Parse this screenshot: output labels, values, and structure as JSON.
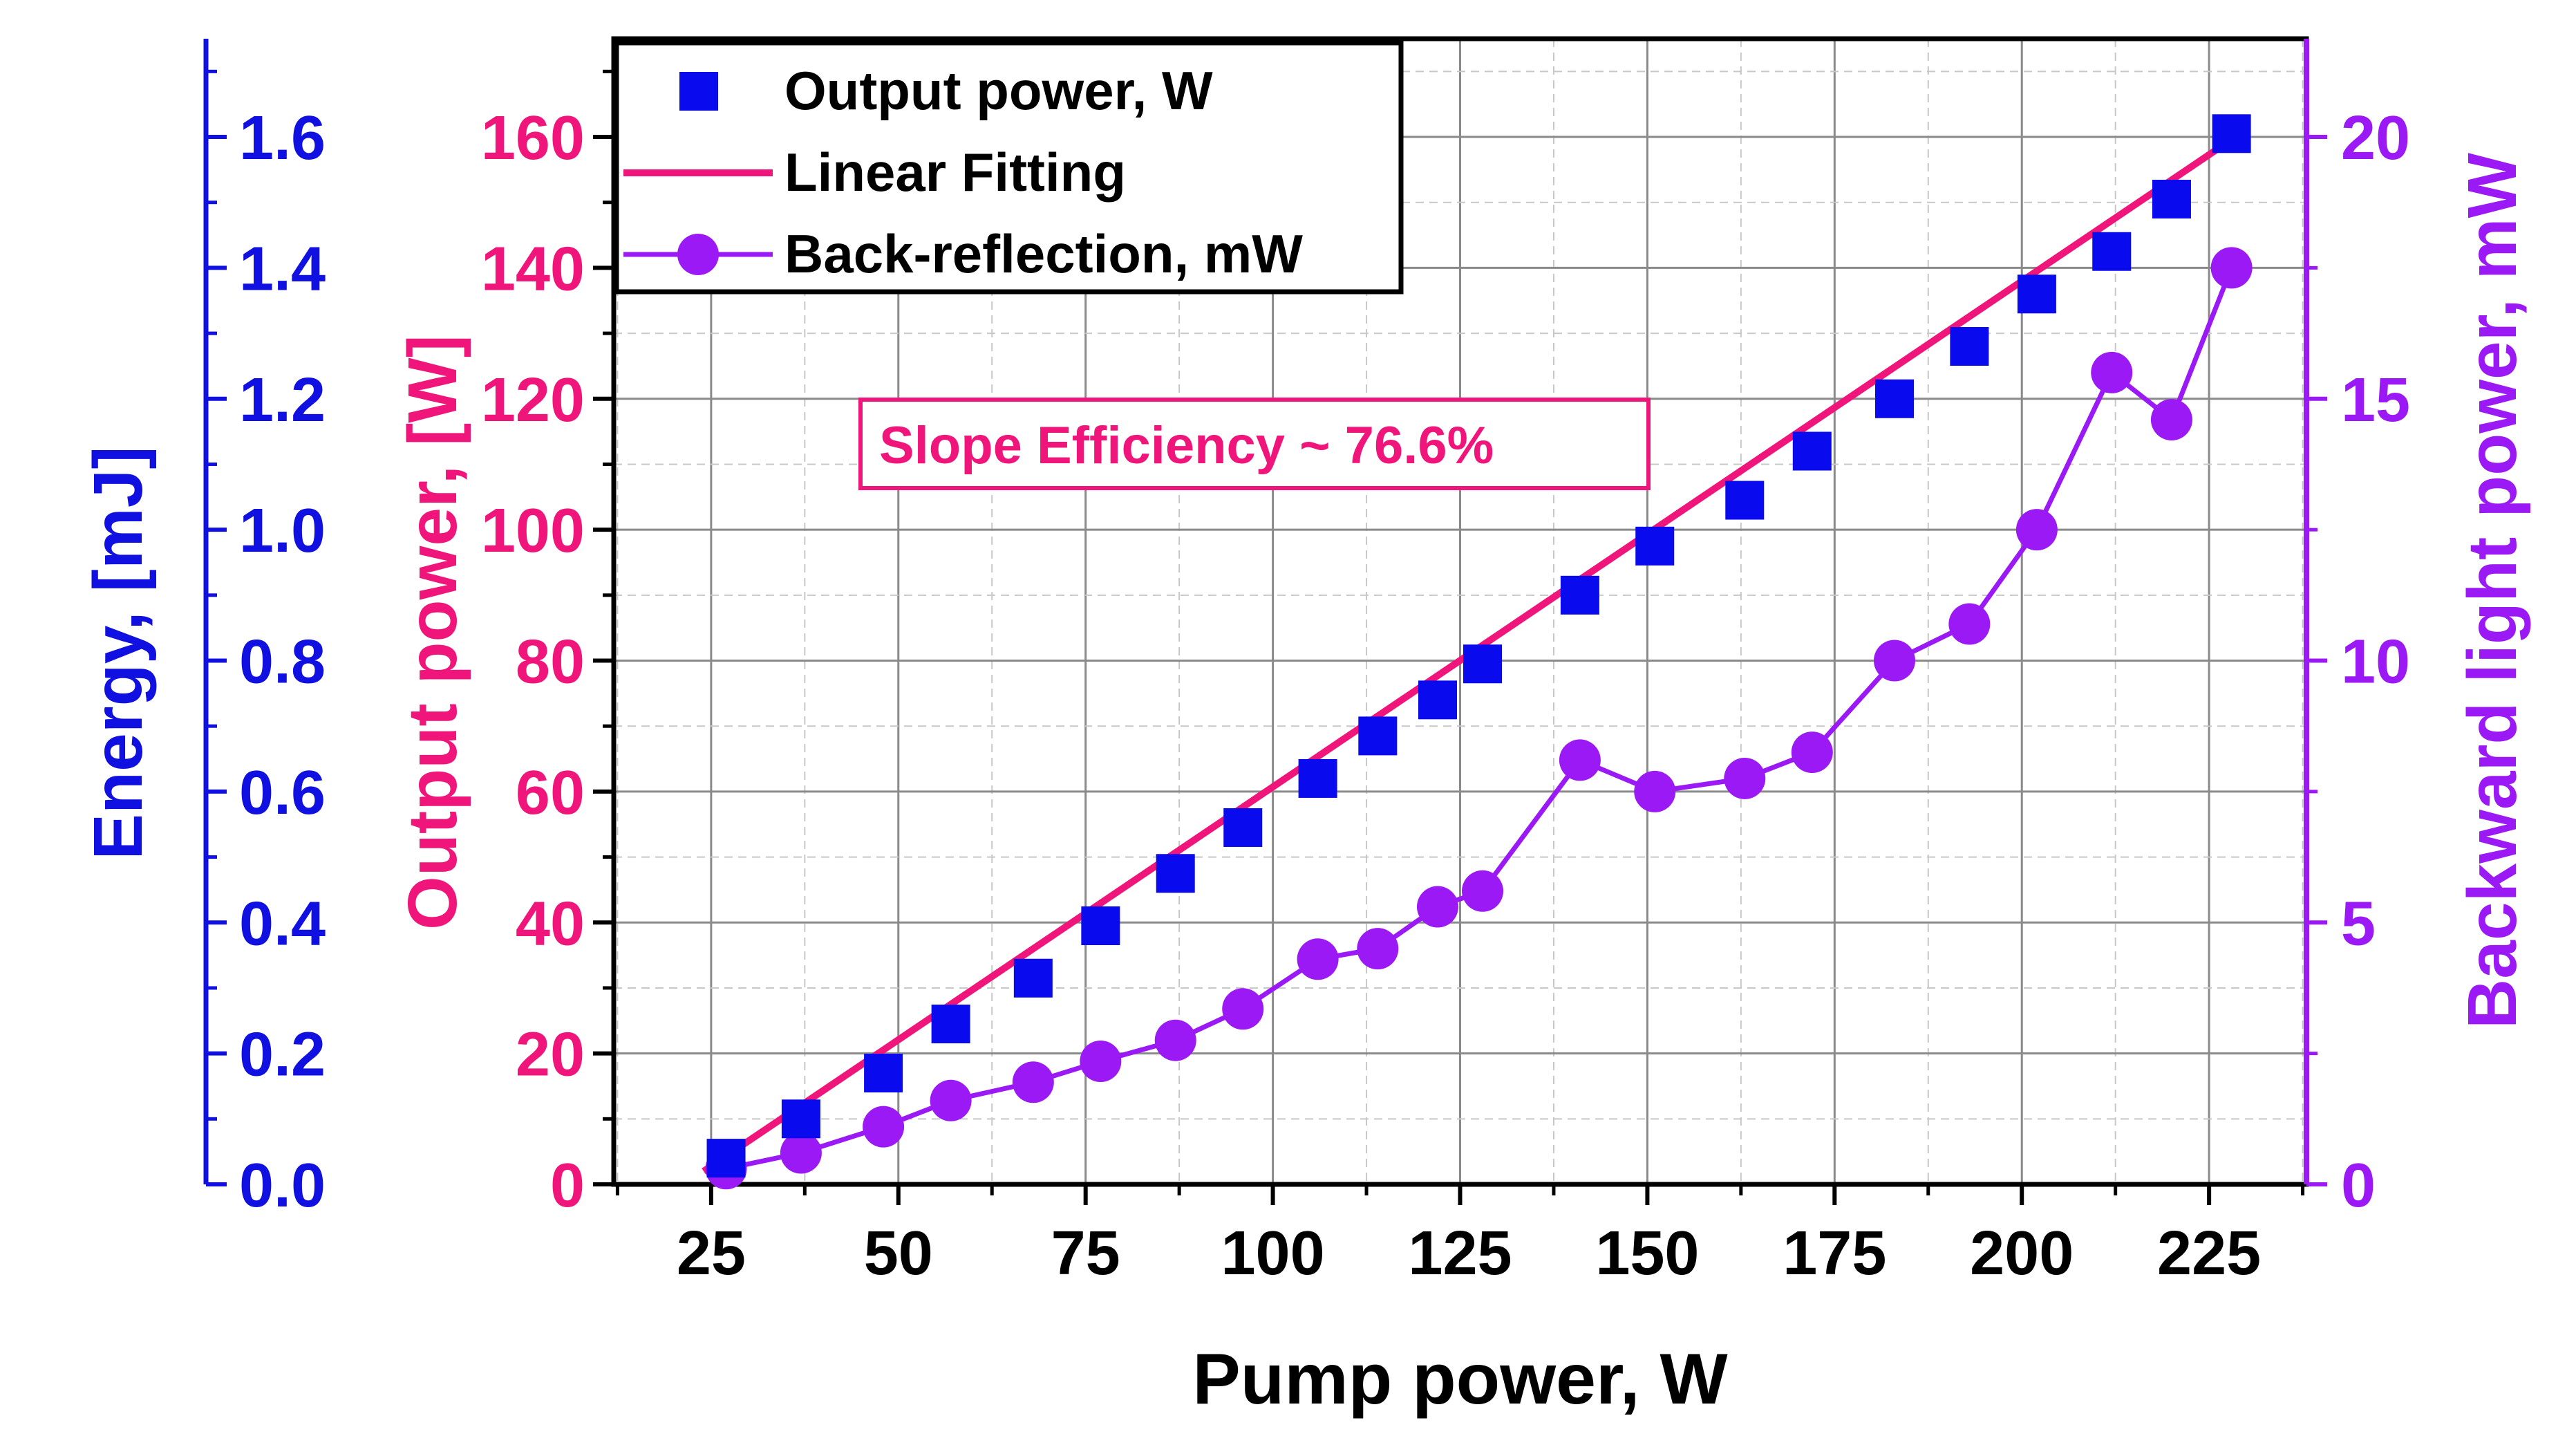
{
  "chart_data": {
    "type": "line",
    "xlabel": "Pump power, W",
    "xlim": [
      12,
      238
    ],
    "xticks": [
      "25",
      "50",
      "75",
      "100",
      "125",
      "150",
      "175",
      "200",
      "225"
    ],
    "left_outer_axis": {
      "label": "Energy, [mJ]",
      "ylim": [
        0,
        1.75
      ],
      "ticks": [
        "0.0",
        "0.2",
        "0.4",
        "0.6",
        "0.8",
        "1.0",
        "1.2",
        "1.4",
        "1.6"
      ],
      "color": "#1010e0"
    },
    "left_axis": {
      "label": "Output power, [W]",
      "ylim": [
        0,
        175
      ],
      "ticks": [
        "0",
        "20",
        "40",
        "60",
        "80",
        "100",
        "120",
        "140",
        "160"
      ],
      "color": "#f0157a"
    },
    "right_axis": {
      "label": "Backward light power, mW",
      "ylim": [
        0,
        21.875
      ],
      "ticks": [
        "0",
        "5",
        "10",
        "15",
        "20"
      ],
      "color": "#9b19f5"
    },
    "series": [
      {
        "name": "Output power, W",
        "axis": "left",
        "marker": "square",
        "color": "#0a0aee",
        "x": [
          27,
          37,
          48,
          57,
          68,
          77,
          87,
          96,
          106,
          114,
          122,
          128,
          141,
          151,
          163,
          172,
          183,
          193,
          202,
          212,
          220,
          228
        ],
        "values": [
          4,
          10,
          17,
          24.5,
          31.5,
          39.5,
          47.5,
          54.5,
          62,
          68.5,
          74,
          79.5,
          90,
          97.5,
          104.5,
          112,
          120,
          128,
          136,
          142.5,
          150.5,
          160.5
        ]
      },
      {
        "name": "Linear Fitting",
        "axis": "left",
        "marker": "none",
        "color": "#f0157a",
        "x": [
          24,
          228
        ],
        "values": [
          2,
          159.6
        ]
      },
      {
        "name": "Back-reflection, mW",
        "axis": "right",
        "marker": "circle",
        "color": "#9b19f5",
        "x": [
          27,
          37,
          48,
          57,
          68,
          77,
          87,
          96,
          106,
          114,
          122,
          128,
          141,
          151,
          163,
          172,
          183,
          193,
          202,
          212,
          220,
          228
        ],
        "values": [
          0.3,
          0.6,
          1.1,
          1.6,
          1.95,
          2.35,
          2.75,
          3.35,
          4.3,
          4.5,
          5.3,
          5.6,
          8.1,
          7.5,
          7.75,
          8.25,
          10,
          10.7,
          12.5,
          15.5,
          14.6,
          17.5
        ]
      }
    ],
    "annotation": "Slope Efficiency ~ 76.6%",
    "legend_position": "top-left",
    "grid": true
  }
}
